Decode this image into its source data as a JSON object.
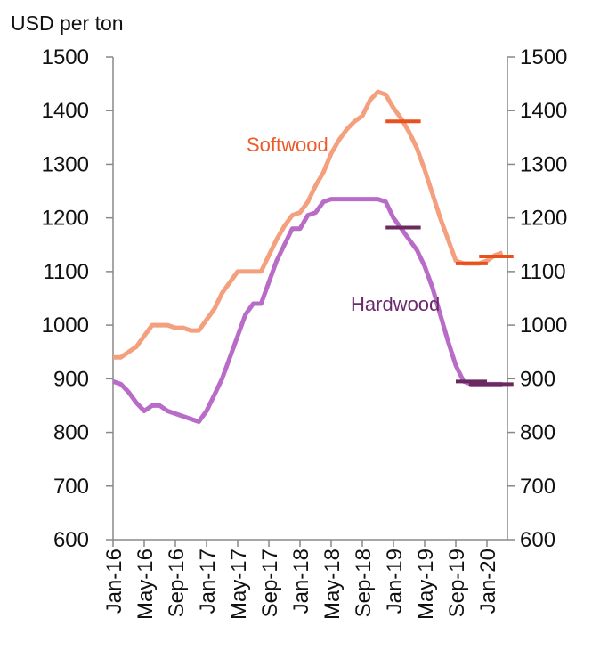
{
  "chart_data": {
    "type": "line",
    "y_label": "USD per ton",
    "categories": [
      "Jan-16",
      null,
      null,
      null,
      "May-16",
      null,
      null,
      null,
      "Sep-16",
      null,
      null,
      null,
      "Jan-17",
      null,
      null,
      null,
      "May-17",
      null,
      null,
      null,
      "Sep-17",
      null,
      null,
      null,
      "Jan-18",
      null,
      null,
      null,
      "May-18",
      null,
      null,
      null,
      "Sep-18",
      null,
      null,
      null,
      "Jan-19",
      null,
      null,
      null,
      "May-19",
      null,
      null,
      null,
      "Sep-19",
      null,
      null,
      null,
      "Jan-20",
      null,
      null
    ],
    "series": [
      {
        "name": "Softwood",
        "color": "#f4a07f",
        "label_color": "#ee5a2a",
        "values": [
          940,
          940,
          950,
          960,
          980,
          1000,
          1000,
          1000,
          995,
          995,
          990,
          990,
          1010,
          1030,
          1060,
          1080,
          1100,
          1100,
          1100,
          1100,
          1130,
          1160,
          1185,
          1205,
          1210,
          1230,
          1260,
          1285,
          1320,
          1345,
          1365,
          1380,
          1390,
          1420,
          1435,
          1430,
          1405,
          1385,
          1360,
          1330,
          1290,
          1245,
          1200,
          1160,
          1120,
          1115,
          1115,
          1115,
          1120,
          1130,
          1135
        ]
      },
      {
        "name": "Hardwood",
        "color": "#b86cc8",
        "label_color": "#6b2a6b",
        "values": [
          895,
          890,
          875,
          855,
          840,
          850,
          850,
          840,
          835,
          830,
          825,
          820,
          840,
          870,
          900,
          940,
          980,
          1020,
          1040,
          1040,
          1080,
          1120,
          1150,
          1180,
          1180,
          1205,
          1210,
          1230,
          1235,
          1235,
          1235,
          1235,
          1235,
          1235,
          1235,
          1230,
          1200,
          1180,
          1160,
          1140,
          1110,
          1070,
          1020,
          970,
          925,
          895,
          890,
          890,
          890,
          890,
          890
        ]
      }
    ],
    "forecasts": [
      {
        "series": 0,
        "color": "#e8501e",
        "value": 1380,
        "x": [
          35,
          39.5
        ]
      },
      {
        "series": 0,
        "color": "#e8501e",
        "value": 1115,
        "x": [
          44,
          48.1
        ]
      },
      {
        "series": 0,
        "color": "#e8501e",
        "value": 1128,
        "x": [
          47,
          51.4
        ]
      },
      {
        "series": 1,
        "color": "#6b2a5f",
        "value": 1182,
        "x": [
          35,
          39.5
        ]
      },
      {
        "series": 1,
        "color": "#6b2a5f",
        "value": 895,
        "x": [
          44,
          48
        ]
      },
      {
        "series": 1,
        "color": "#6b2a5f",
        "value": 890,
        "x": [
          45.7,
          51.4
        ]
      }
    ],
    "ylim": [
      600,
      1500
    ],
    "yticks": [
      600,
      700,
      800,
      900,
      1000,
      1100,
      1200,
      1300,
      1400,
      1500
    ],
    "y2lim": [
      600,
      1500
    ],
    "y2ticks": [
      600,
      700,
      800,
      900,
      1000,
      1100,
      1200,
      1300,
      1400,
      1500
    ]
  }
}
